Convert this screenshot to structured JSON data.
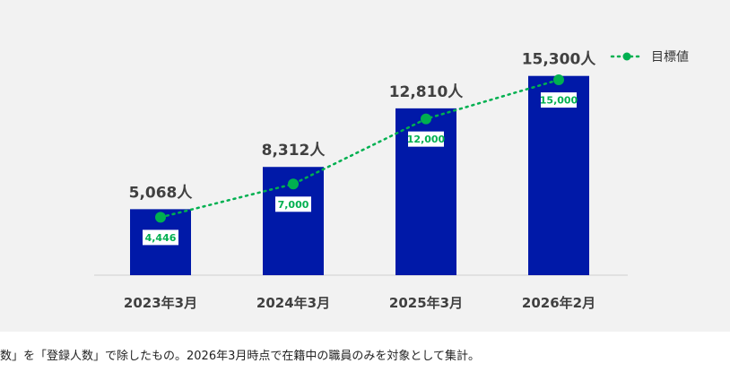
{
  "footnote": "数」を「登録人数」で除したもの。2026年3月時点で在籍中の職員のみを対象として集計。",
  "colors": {
    "bar": "#0019a8",
    "target": "#00b050",
    "panel": "#f2f2f2",
    "text": "#404040"
  },
  "chart_data": {
    "type": "bar",
    "categories": [
      "2023年3月",
      "2024年3月",
      "2025年3月",
      "2026年2月"
    ],
    "series": [
      {
        "values": [
          5068,
          8312,
          12810,
          15300
        ],
        "labels": [
          "5,068人",
          "8,312人",
          "12,810人",
          "15,300人"
        ],
        "color": "#0019a8"
      },
      {
        "name": "目標値",
        "type": "line",
        "style": "dotted",
        "values": [
          4446,
          7000,
          12000,
          15000
        ],
        "labels": [
          "4,446",
          "7,000",
          "12,000",
          "15,000"
        ],
        "color": "#00b050"
      }
    ],
    "legend": {
      "entries": [
        "目標値"
      ],
      "position": "top-right"
    },
    "ylim": [
      0,
      17000
    ],
    "grid": false
  }
}
